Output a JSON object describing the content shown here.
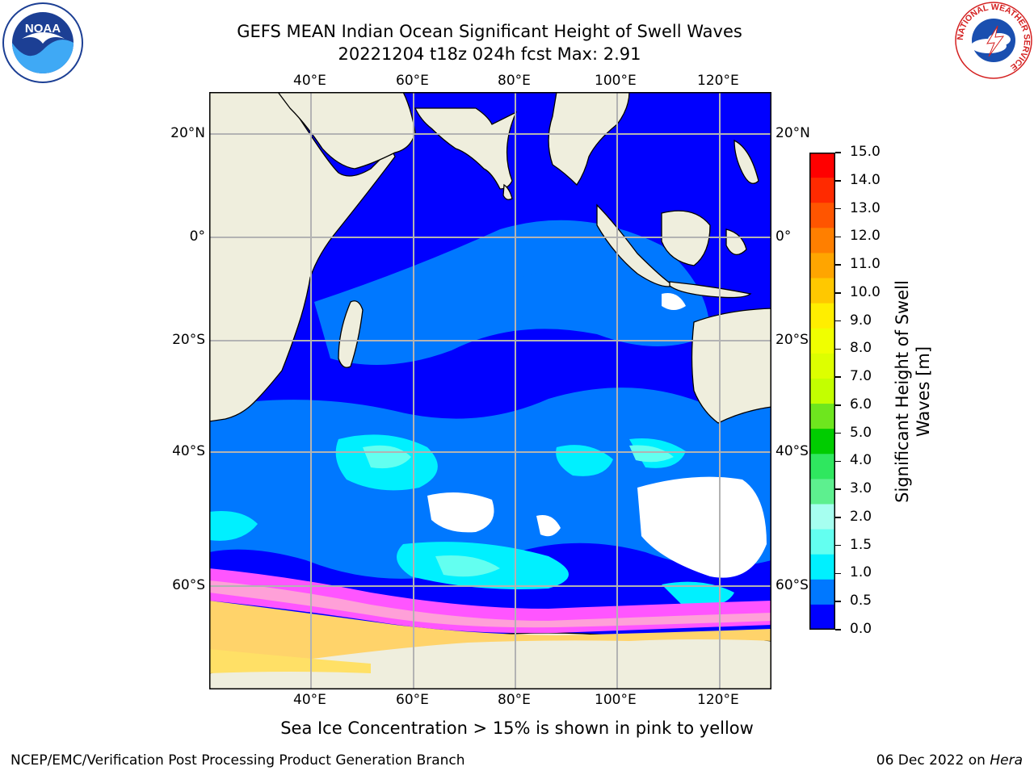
{
  "title": {
    "line1": "GEFS MEAN Indian Ocean Significant Height of Swell Waves",
    "line2": "20221204 t18z 024h fcst   Max: 2.91"
  },
  "map": {
    "lon_labels": [
      "40°E",
      "60°E",
      "80°E",
      "100°E",
      "120°E"
    ],
    "lat_labels": [
      "20°N",
      "0°",
      "20°S",
      "40°S",
      "60°S"
    ],
    "colors": {
      "land": "#efeedd",
      "gridline": "#b3b3b3",
      "no_data": "#ffffff"
    }
  },
  "colorbar": {
    "label": "Significant Height of Swell Waves [m]",
    "ticks": [
      "15.0",
      "14.0",
      "13.0",
      "12.0",
      "11.0",
      "10.0",
      "9.0",
      "8.0",
      "7.0",
      "6.0",
      "5.0",
      "4.0",
      "3.0",
      "2.0",
      "1.5",
      "1.0",
      "0.5",
      "0.0"
    ],
    "colors_top_to_bottom": [
      "#ff0000",
      "#ff2a00",
      "#ff5500",
      "#ff7f00",
      "#ffa500",
      "#ffc800",
      "#ffee00",
      "#f0ff00",
      "#ddff00",
      "#c3ff00",
      "#6ee61e",
      "#00cc00",
      "#2fe75f",
      "#5df08f",
      "#a6fff0",
      "#63fff0",
      "#00f0ff",
      "#0078ff",
      "#0000ff"
    ]
  },
  "logos": {
    "noaa": {
      "text": "NOAA"
    },
    "nws": {
      "text": "NATIONAL WEATHER SERVICE"
    }
  },
  "footer": {
    "note": "Sea Ice Concentration > 15% is shown in pink to yellow",
    "credit": "NCEP/EMC/Verification Post Processing Product Generation Branch",
    "date": "06 Dec 2022 on ",
    "machine": "Hera"
  }
}
